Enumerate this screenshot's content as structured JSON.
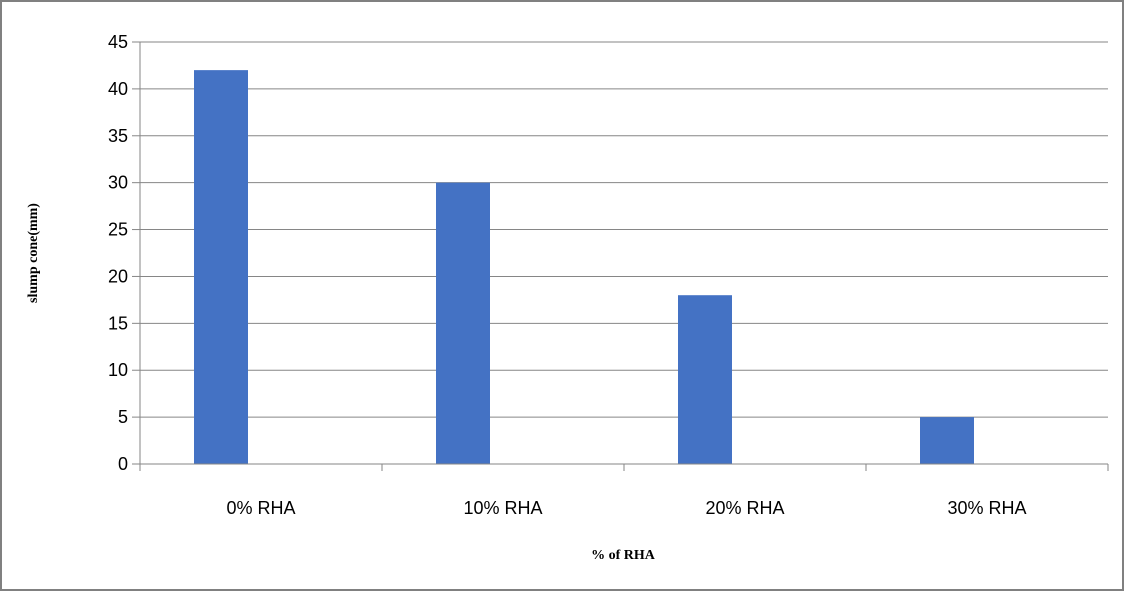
{
  "chart_data": {
    "type": "bar",
    "categories": [
      "0% RHA",
      "10% RHA",
      "20% RHA",
      "30% RHA"
    ],
    "series": [
      {
        "values": [
          42,
          30,
          18,
          5
        ]
      }
    ],
    "title": "",
    "xlabel": "% of RHA",
    "ylabel": "slump cone(mm)",
    "ylim": [
      0,
      45
    ],
    "yticks": [
      0,
      5,
      10,
      15,
      20,
      25,
      30,
      35,
      40,
      45
    ],
    "grid": true,
    "legend": "none",
    "colors": {
      "bar": "#4472C4",
      "grid": "#868686",
      "axis": "#868686",
      "border": "#808080"
    }
  }
}
